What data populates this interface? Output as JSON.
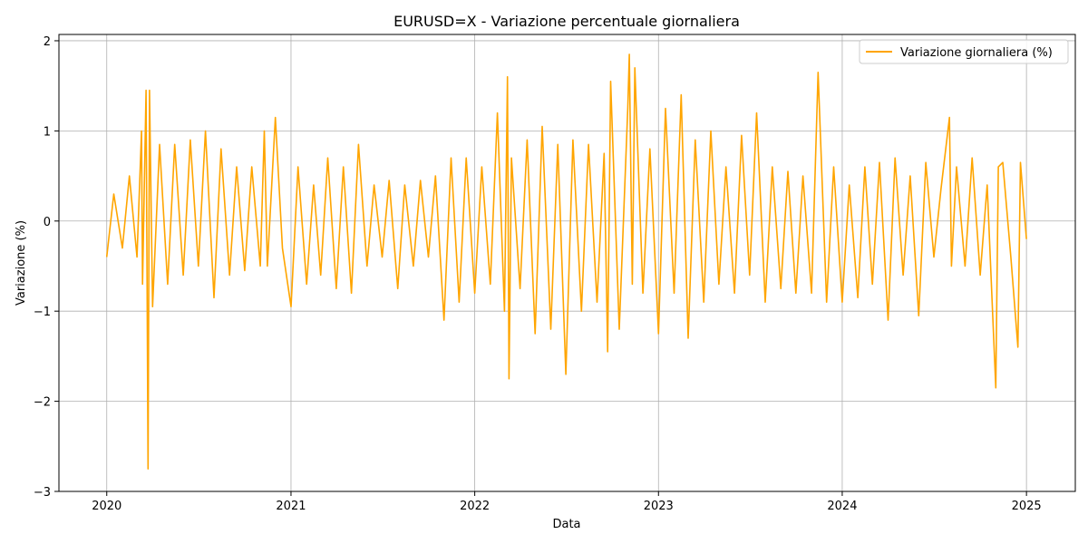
{
  "chart_data": {
    "type": "line",
    "title": "EURUSD=X - Variazione percentuale giornaliera",
    "xlabel": "Data",
    "ylabel": "Variazione (%)",
    "xlim": [
      "2019-09-28",
      "2025-04-08"
    ],
    "ylim": [
      -3,
      2.07
    ],
    "grid": true,
    "legend_position": "top-right",
    "x_ticks": [
      "2020",
      "2021",
      "2022",
      "2023",
      "2024",
      "2025"
    ],
    "y_ticks": [
      -3,
      -2,
      -1,
      0,
      1,
      2
    ],
    "y_tick_labels": [
      "−3",
      "−2",
      "−1",
      "0",
      "1",
      "2"
    ],
    "series": [
      {
        "name": "Variazione giornaliera (%)",
        "color": "#ffa500",
        "x": [
          "2020-01-01",
          "2020-01-15",
          "2020-02-01",
          "2020-02-15",
          "2020-03-01",
          "2020-03-10",
          "2020-03-12",
          "2020-03-19",
          "2020-03-23",
          "2020-03-26",
          "2020-04-01",
          "2020-04-15",
          "2020-05-01",
          "2020-05-15",
          "2020-06-01",
          "2020-06-15",
          "2020-07-01",
          "2020-07-15",
          "2020-08-01",
          "2020-08-15",
          "2020-09-01",
          "2020-09-15",
          "2020-10-01",
          "2020-10-15",
          "2020-11-01",
          "2020-11-09",
          "2020-11-15",
          "2020-12-01",
          "2020-12-15",
          "2021-01-01",
          "2021-01-15",
          "2021-02-01",
          "2021-02-15",
          "2021-03-01",
          "2021-03-15",
          "2021-04-01",
          "2021-04-15",
          "2021-05-01",
          "2021-05-15",
          "2021-06-01",
          "2021-06-15",
          "2021-07-01",
          "2021-07-15",
          "2021-08-01",
          "2021-08-15",
          "2021-09-01",
          "2021-09-15",
          "2021-10-01",
          "2021-10-15",
          "2021-11-01",
          "2021-11-15",
          "2021-12-01",
          "2021-12-15",
          "2022-01-01",
          "2022-01-15",
          "2022-02-01",
          "2022-02-15",
          "2022-03-01",
          "2022-03-07",
          "2022-03-10",
          "2022-03-15",
          "2022-04-01",
          "2022-04-15",
          "2022-05-01",
          "2022-05-15",
          "2022-06-01",
          "2022-06-15",
          "2022-07-01",
          "2022-07-15",
          "2022-08-01",
          "2022-08-15",
          "2022-09-01",
          "2022-09-15",
          "2022-09-22",
          "2022-09-28",
          "2022-10-15",
          "2022-11-01",
          "2022-11-04",
          "2022-11-10",
          "2022-11-15",
          "2022-12-01",
          "2022-12-15",
          "2023-01-01",
          "2023-01-15",
          "2023-02-01",
          "2023-02-15",
          "2023-03-01",
          "2023-03-15",
          "2023-04-01",
          "2023-04-15",
          "2023-05-01",
          "2023-05-15",
          "2023-06-01",
          "2023-06-15",
          "2023-07-01",
          "2023-07-15",
          "2023-08-01",
          "2023-08-15",
          "2023-09-01",
          "2023-09-15",
          "2023-10-01",
          "2023-10-15",
          "2023-11-01",
          "2023-11-14",
          "2023-12-01",
          "2023-12-15",
          "2024-01-01",
          "2024-01-15",
          "2024-02-01",
          "2024-02-15",
          "2024-03-01",
          "2024-03-15",
          "2024-04-01",
          "2024-04-15",
          "2024-05-01",
          "2024-05-15",
          "2024-06-01",
          "2024-06-15",
          "2024-07-01",
          "2024-07-15",
          "2024-08-01",
          "2024-08-05",
          "2024-08-15",
          "2024-09-01",
          "2024-09-15",
          "2024-10-01",
          "2024-10-15",
          "2024-11-01",
          "2024-11-06",
          "2024-11-15",
          "2024-12-01",
          "2024-12-15",
          "2024-12-20",
          "2025-01-01"
        ],
        "values": [
          -0.4,
          0.3,
          -0.3,
          0.5,
          -0.4,
          1.0,
          -0.7,
          1.45,
          -2.75,
          1.45,
          -0.95,
          0.85,
          -0.7,
          0.85,
          -0.6,
          0.9,
          -0.5,
          1.0,
          -0.85,
          0.8,
          -0.6,
          0.6,
          -0.55,
          0.6,
          -0.5,
          1.0,
          -0.5,
          1.15,
          -0.3,
          -0.95,
          0.6,
          -0.7,
          0.4,
          -0.6,
          0.7,
          -0.75,
          0.6,
          -0.8,
          0.85,
          -0.5,
          0.4,
          -0.4,
          0.45,
          -0.75,
          0.4,
          -0.5,
          0.45,
          -0.4,
          0.5,
          -1.1,
          0.7,
          -0.9,
          0.7,
          -0.8,
          0.6,
          -0.7,
          1.2,
          -1.0,
          1.6,
          -1.75,
          0.7,
          -0.75,
          0.9,
          -1.25,
          1.05,
          -1.2,
          0.85,
          -1.7,
          0.9,
          -1.0,
          0.85,
          -0.9,
          0.75,
          -1.45,
          1.55,
          -1.2,
          1.25,
          1.85,
          -0.7,
          1.7,
          -0.8,
          0.8,
          -1.25,
          1.25,
          -0.8,
          1.4,
          -1.3,
          0.9,
          -0.9,
          1.0,
          -0.7,
          0.6,
          -0.8,
          0.95,
          -0.6,
          1.2,
          -0.9,
          0.6,
          -0.75,
          0.55,
          -0.8,
          0.5,
          -0.8,
          1.65,
          -0.9,
          0.6,
          -0.9,
          0.4,
          -0.85,
          0.6,
          -0.7,
          0.65,
          -1.1,
          0.7,
          -0.6,
          0.5,
          -1.05,
          0.65,
          -0.4,
          0.35,
          1.15,
          -0.5,
          0.6,
          -0.5,
          0.7,
          -0.6,
          0.4,
          -1.85,
          0.6,
          0.65,
          -0.4,
          -1.4,
          0.65,
          -0.2
        ]
      }
    ]
  }
}
